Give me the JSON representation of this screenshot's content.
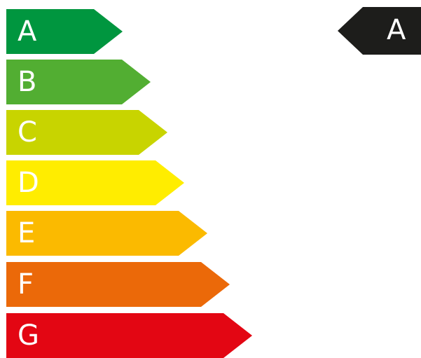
{
  "rating_scale": {
    "bands": [
      {
        "letter": "A",
        "color": "#00963f"
      },
      {
        "letter": "B",
        "color": "#52ae32"
      },
      {
        "letter": "C",
        "color": "#c8d400"
      },
      {
        "letter": "D",
        "color": "#ffed00"
      },
      {
        "letter": "E",
        "color": "#fbba00"
      },
      {
        "letter": "F",
        "color": "#eb6909"
      },
      {
        "letter": "G",
        "color": "#e30613"
      }
    ]
  },
  "indicator": {
    "letter": "A",
    "color": "#1d1d1b"
  }
}
